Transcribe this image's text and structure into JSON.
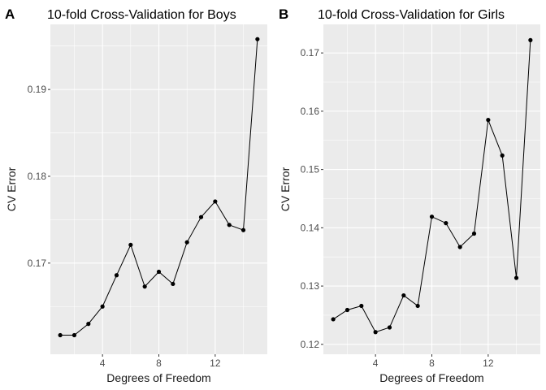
{
  "chart_data": [
    {
      "type": "line",
      "tag": "A",
      "title": "10-fold Cross-Validation for Boys",
      "xlabel": "Degrees of Freedom",
      "ylabel": "CV Error",
      "xlim": [
        0.3,
        15.7
      ],
      "ylim": [
        0.1595,
        0.1975
      ],
      "x_ticks": [
        4,
        8,
        12
      ],
      "y_ticks": [
        0.17,
        0.18,
        0.19
      ],
      "y_tick_labels": [
        "0.17",
        "0.18",
        "0.19"
      ],
      "series": [
        {
          "x": [
            1,
            2,
            3,
            4,
            5,
            6,
            7,
            8,
            9,
            10,
            11,
            12,
            13,
            14,
            15
          ],
          "values": [
            0.1617,
            0.1617,
            0.163,
            0.165,
            0.1686,
            0.1721,
            0.1673,
            0.169,
            0.1676,
            0.1724,
            0.1753,
            0.1771,
            0.1744,
            0.1738,
            0.1958
          ]
        }
      ],
      "grid": true,
      "legend": "none"
    },
    {
      "type": "line",
      "tag": "B",
      "title": "10-fold Cross-Validation for Girls",
      "xlabel": "Degrees of Freedom",
      "ylabel": "CV Error",
      "xlim": [
        0.3,
        15.7
      ],
      "ylim": [
        0.1183,
        0.1749
      ],
      "x_ticks": [
        4,
        8,
        12
      ],
      "y_ticks": [
        0.12,
        0.13,
        0.14,
        0.15,
        0.16,
        0.17
      ],
      "y_tick_labels": [
        "0.12",
        "0.13",
        "0.14",
        "0.15",
        "0.16",
        "0.17"
      ],
      "series": [
        {
          "x": [
            1,
            2,
            3,
            4,
            5,
            6,
            7,
            8,
            9,
            10,
            11,
            12,
            13,
            14,
            15
          ],
          "values": [
            0.1243,
            0.1259,
            0.1266,
            0.1221,
            0.1229,
            0.1284,
            0.1266,
            0.1419,
            0.1408,
            0.1367,
            0.139,
            0.1585,
            0.1524,
            0.1314,
            0.1722
          ]
        }
      ],
      "grid": true,
      "legend": "none"
    }
  ],
  "colors": {
    "panel_background": "#ebebeb",
    "grid_major": "#ffffff",
    "line": "#000000",
    "tick_label": "#4d4d4d",
    "axis_title": "#1a1a1a"
  }
}
